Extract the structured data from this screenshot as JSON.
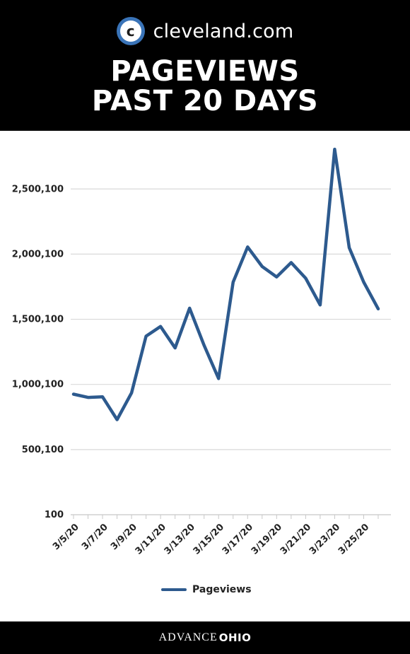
{
  "header": {
    "site_name": "cleveland.com",
    "logo_letter": "c",
    "title_line1": "PAGEVIEWS",
    "title_line2": "PAST 20 DAYS"
  },
  "footer": {
    "brand_part1": "ADVANCE",
    "brand_part2": "OHIO"
  },
  "colors": {
    "line": "#2d5a8e",
    "logo": "#3a74b8",
    "grid": "#d9d9d9"
  },
  "chart_data": {
    "type": "line",
    "title": "",
    "xlabel": "",
    "ylabel": "",
    "ylim": [
      100,
      2800100
    ],
    "yticks": [
      100,
      500100,
      1000100,
      1500100,
      2000100,
      2500100
    ],
    "ytick_labels": [
      "100",
      "500,100",
      "1,000,100",
      "1,500,100",
      "2,000,100",
      "2,500,100"
    ],
    "x": [
      "3/5/20",
      "3/6/20",
      "3/7/20",
      "3/8/20",
      "3/9/20",
      "3/10/20",
      "3/11/20",
      "3/12/20",
      "3/13/20",
      "3/14/20",
      "3/15/20",
      "3/16/20",
      "3/17/20",
      "3/18/20",
      "3/19/20",
      "3/20/20",
      "3/21/20",
      "3/22/20",
      "3/23/20",
      "3/24/20",
      "3/25/20",
      "3/26/20"
    ],
    "xtick_labels": [
      "3/5/20",
      "3/7/20",
      "3/9/20",
      "3/11/20",
      "3/13/20",
      "3/15/20",
      "3/17/20",
      "3/19/20",
      "3/21/20",
      "3/23/20",
      "3/25/20"
    ],
    "series": [
      {
        "name": "Pageviews",
        "values": [
          925000,
          900000,
          905000,
          730000,
          935000,
          1370000,
          1445000,
          1280000,
          1585000,
          1300000,
          1045000,
          1785000,
          2055000,
          1905000,
          1825000,
          1935000,
          1815000,
          1610000,
          2805000,
          2050000,
          1785000,
          1580000
        ]
      }
    ],
    "legend": "bottom",
    "grid": true
  }
}
